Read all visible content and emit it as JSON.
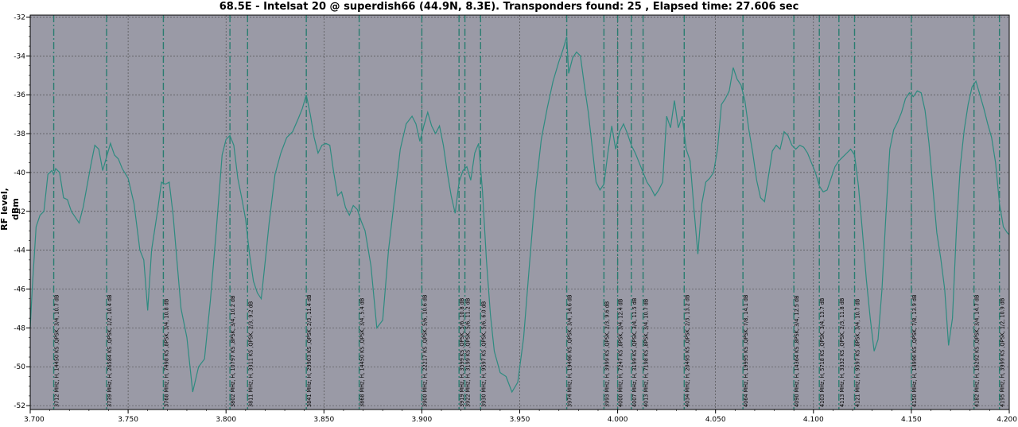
{
  "chart_data": {
    "type": "line",
    "title": "68.5E - Intelsat 20 @ superdish66 (44.9N, 8.3E). Transponders found: 25 , Elapsed time: 27.606 sec",
    "xlabel": "",
    "ylabel": "RF level, dBm",
    "xlim": [
      3.7,
      4.2
    ],
    "ylim": [
      -52.2,
      -31.9
    ],
    "x_ticks": [
      "3.700",
      "3.750",
      "3.800",
      "3.850",
      "3.900",
      "3.950",
      "4.000",
      "4.050",
      "4.100",
      "4.150",
      "4.200"
    ],
    "y_ticks": [
      "-32",
      "-34",
      "-36",
      "-38",
      "-40",
      "-42",
      "-44",
      "-46",
      "-48",
      "-50",
      "-52"
    ],
    "grid": true,
    "colors": {
      "plot_bg": "#9a9aa6",
      "line": "#2e8b80",
      "marker": "#2a7d70",
      "grid": "#444444"
    },
    "series": [
      {
        "x": [
          3.7,
          3.701,
          3.703,
          3.705,
          3.707,
          3.709,
          3.711,
          3.712,
          3.713,
          3.715,
          3.717,
          3.719,
          3.721,
          3.723,
          3.725,
          3.727,
          3.729,
          3.731,
          3.733,
          3.735,
          3.737,
          3.739,
          3.741,
          3.743,
          3.745,
          3.747,
          3.75,
          3.753,
          3.756,
          3.758,
          3.76,
          3.762,
          3.765,
          3.767,
          3.769,
          3.771,
          3.773,
          3.775,
          3.777,
          3.78,
          3.783,
          3.786,
          3.789,
          3.792,
          3.795,
          3.798,
          3.8,
          3.802,
          3.804,
          3.806,
          3.808,
          3.81,
          3.812,
          3.814,
          3.816,
          3.818,
          3.82,
          3.822,
          3.825,
          3.828,
          3.831,
          3.834,
          3.837,
          3.839,
          3.841,
          3.843,
          3.845,
          3.847,
          3.849,
          3.851,
          3.853,
          3.855,
          3.857,
          3.859,
          3.861,
          3.863,
          3.865,
          3.867,
          3.869,
          3.871,
          3.874,
          3.877,
          3.88,
          3.883,
          3.886,
          3.889,
          3.892,
          3.895,
          3.897,
          3.899,
          3.901,
          3.903,
          3.905,
          3.907,
          3.909,
          3.911,
          3.913,
          3.915,
          3.917,
          3.919,
          3.921,
          3.923,
          3.925,
          3.927,
          3.929,
          3.931,
          3.933,
          3.935,
          3.937,
          3.94,
          3.943,
          3.946,
          3.949,
          3.952,
          3.955,
          3.958,
          3.961,
          3.964,
          3.967,
          3.97,
          3.972,
          3.974,
          3.975,
          3.977,
          3.979,
          3.981,
          3.983,
          3.985,
          3.987,
          3.989,
          3.991,
          3.993,
          3.995,
          3.997,
          3.999,
          4.001,
          4.003,
          4.005,
          4.007,
          4.009,
          4.011,
          4.013,
          4.015,
          4.017,
          4.019,
          4.021,
          4.023,
          4.025,
          4.027,
          4.029,
          4.031,
          4.033,
          4.035,
          4.037,
          4.039,
          4.041,
          4.043,
          4.045,
          4.047,
          4.049,
          4.051,
          4.053,
          4.055,
          4.057,
          4.059,
          4.061,
          4.063,
          4.065,
          4.067,
          4.069,
          4.071,
          4.073,
          4.075,
          4.077,
          4.079,
          4.081,
          4.083,
          4.085,
          4.087,
          4.089,
          4.091,
          4.093,
          4.095,
          4.097,
          4.099,
          4.101,
          4.103,
          4.105,
          4.107,
          4.109,
          4.111,
          4.113,
          4.115,
          4.117,
          4.119,
          4.121,
          4.123,
          4.125,
          4.127,
          4.129,
          4.131,
          4.133,
          4.135,
          4.137,
          4.139,
          4.141,
          4.143,
          4.145,
          4.147,
          4.149,
          4.151,
          4.153,
          4.155,
          4.157,
          4.159,
          4.161,
          4.163,
          4.165,
          4.167,
          4.169,
          4.171,
          4.173,
          4.175,
          4.177,
          4.179,
          4.181,
          4.183,
          4.185,
          4.187,
          4.189,
          4.191,
          4.193,
          4.195,
          4.197,
          4.199,
          4.2
        ],
        "y": [
          -48.0,
          -46.0,
          -42.8,
          -42.2,
          -42.0,
          -40.1,
          -39.9,
          -40.1,
          -39.8,
          -40.0,
          -41.3,
          -41.4,
          -42.0,
          -42.3,
          -42.6,
          -41.8,
          -40.7,
          -39.6,
          -38.6,
          -38.8,
          -39.9,
          -39.2,
          -38.5,
          -39.1,
          -39.3,
          -39.8,
          -40.3,
          -41.6,
          -44.0,
          -44.5,
          -47.1,
          -44.0,
          -42.0,
          -40.5,
          -40.6,
          -40.5,
          -42.2,
          -44.6,
          -47.0,
          -48.5,
          -51.3,
          -50.0,
          -49.6,
          -46.6,
          -43.0,
          -39.1,
          -38.3,
          -38.1,
          -38.6,
          -40.3,
          -41.3,
          -42.4,
          -44.2,
          -45.6,
          -46.2,
          -46.5,
          -44.6,
          -42.6,
          -40.1,
          -39.0,
          -38.2,
          -37.9,
          -37.2,
          -36.7,
          -36.0,
          -37.0,
          -38.2,
          -39.0,
          -38.6,
          -38.5,
          -38.6,
          -40.0,
          -41.2,
          -41.0,
          -41.8,
          -42.2,
          -41.7,
          -41.9,
          -42.5,
          -43.0,
          -44.8,
          -48.0,
          -47.6,
          -44.0,
          -41.4,
          -38.8,
          -37.5,
          -37.1,
          -37.5,
          -38.4,
          -37.6,
          -36.9,
          -37.6,
          -38.0,
          -37.6,
          -38.6,
          -40.0,
          -41.2,
          -42.1,
          -40.5,
          -39.9,
          -39.7,
          -40.4,
          -39.0,
          -38.5,
          -41.0,
          -44.5,
          -47.3,
          -49.2,
          -50.3,
          -50.5,
          -51.3,
          -50.8,
          -48.5,
          -44.7,
          -41.0,
          -38.3,
          -36.7,
          -35.3,
          -34.3,
          -33.7,
          -33.0,
          -34.9,
          -34.1,
          -33.8,
          -34.0,
          -35.5,
          -36.9,
          -38.7,
          -40.5,
          -40.9,
          -40.6,
          -39.0,
          -37.6,
          -38.8,
          -37.9,
          -37.5,
          -38.0,
          -38.6,
          -39.0,
          -39.5,
          -40.0,
          -40.5,
          -40.8,
          -41.2,
          -40.9,
          -40.5,
          -37.1,
          -37.7,
          -36.3,
          -37.7,
          -37.1,
          -38.8,
          -39.4,
          -41.9,
          -44.2,
          -41.6,
          -40.5,
          -40.3,
          -40.0,
          -38.8,
          -36.5,
          -36.2,
          -35.8,
          -34.6,
          -35.2,
          -35.5,
          -36.3,
          -37.8,
          -39.0,
          -40.4,
          -41.3,
          -41.5,
          -40.2,
          -38.9,
          -38.6,
          -38.8,
          -37.9,
          -38.1,
          -38.6,
          -38.8,
          -38.6,
          -38.7,
          -39.0,
          -39.5,
          -40.0,
          -40.7,
          -41.0,
          -40.9,
          -40.3,
          -39.7,
          -39.4,
          -39.2,
          -39.0,
          -38.8,
          -39.1,
          -40.7,
          -43.0,
          -45.5,
          -47.5,
          -49.2,
          -48.6,
          -46.0,
          -42.2,
          -38.8,
          -37.8,
          -37.4,
          -36.9,
          -36.2,
          -35.9,
          -36.1,
          -35.8,
          -35.9,
          -36.8,
          -38.5,
          -40.8,
          -43.1,
          -44.4,
          -46.0,
          -48.9,
          -47.5,
          -43.0,
          -39.7,
          -37.8,
          -36.5,
          -35.6,
          -35.3,
          -36.0,
          -36.7,
          -37.5,
          -38.2,
          -39.5,
          -41.6,
          -42.8,
          -43.1,
          -43.2
        ]
      }
    ],
    "transponders": [
      {
        "f": 3.712,
        "label": "3712 MHz, H, 14450 KS ,QPSK, 3/4, 10.7 dB"
      },
      {
        "f": 3.739,
        "label": "3739 MHz, H, 26584 KS ,QPSK, 1/2, 10.4 dB"
      },
      {
        "f": 3.768,
        "label": "3768 MHz, H, 7498 KS ,8PSK, 3/4, 10.8 dB"
      },
      {
        "f": 3.802,
        "label": "3802 MHz, H, 10797 KS ,8PSK, 3/4, 10.2 dB"
      },
      {
        "f": 3.811,
        "label": "3811 MHz, H, 3311 KS ,QPSK, 2/3, 9.2 dB"
      },
      {
        "f": 3.841,
        "label": "3841 MHz, H, 29903 KS ,QPSK, 2/3, 11.4 dB"
      },
      {
        "f": 3.868,
        "label": "3868 MHz, H, 14450 KS ,QPSK, 3/4, 5.4 dB"
      },
      {
        "f": 3.9,
        "label": "3900 MHz, H, 22217 KS ,QPSK, 5/6, 10.6 dB"
      },
      {
        "f": 3.919,
        "label": "3919 MHz, H, 3599 KS ,QPSK, 5/6, 10.8 dB"
      },
      {
        "f": 3.922,
        "label": "3922 MHz, H, 3199 KS ,QPSK, 5/6, 11.2 dB"
      },
      {
        "f": 3.93,
        "label": "3930 MHz, H, 9597 KS ,QPSK, 5/6, 6.0 dB"
      },
      {
        "f": 3.974,
        "label": "3974 MHz, H, 19496 KS ,QPSK, 3/4, 14.6 dB"
      },
      {
        "f": 3.993,
        "label": "3993 MHz, H, 3999 KS ,QPSK, 2/3, 9.6 dB"
      },
      {
        "f": 4.0,
        "label": "4000 MHz, H, 7247 KS ,8PSK, 3/4, 12.4 dB"
      },
      {
        "f": 4.007,
        "label": "4007 MHz, H, 3199 KS ,QPSK, 3/4, 11.5 dB"
      },
      {
        "f": 4.013,
        "label": "4013 MHz, H, 7198 KS ,8PSK, 3/4, 10.7 dB"
      },
      {
        "f": 4.034,
        "label": "4034 MHz, H, 20495 KS ,QPSK, 2/3, 13.2 dB"
      },
      {
        "f": 4.064,
        "label": "4064 MHz, H, 19995 KS ,QPSK, 7/8, 14.1 dB"
      },
      {
        "f": 4.09,
        "label": "4090 MHz, H, 14364 KS ,8PSK, 3/4, 12.5 dB"
      },
      {
        "f": 4.103,
        "label": "4103 MHz, H, 5718 KS ,QPSK, 3/4, 13.7 dB"
      },
      {
        "f": 4.113,
        "label": "4113 MHz, H, 3332 KS ,QPSK, 2/3, 11.8 dB"
      },
      {
        "f": 4.121,
        "label": "4121 MHz, H, 9597 KS ,8PSK, 3/4, 10.7 dB"
      },
      {
        "f": 4.15,
        "label": "4150 MHz, H, 14996 KS ,QPSK, 7/8, 13.9 dB"
      },
      {
        "f": 4.182,
        "label": "4182 MHz, H, 16292 KS ,QPSK, 3/4, 14.7 dB"
      },
      {
        "f": 4.195,
        "label": "4195 MHz, H, 3999 KS ,QPSK, 1/2, 10.9 dB"
      }
    ]
  }
}
